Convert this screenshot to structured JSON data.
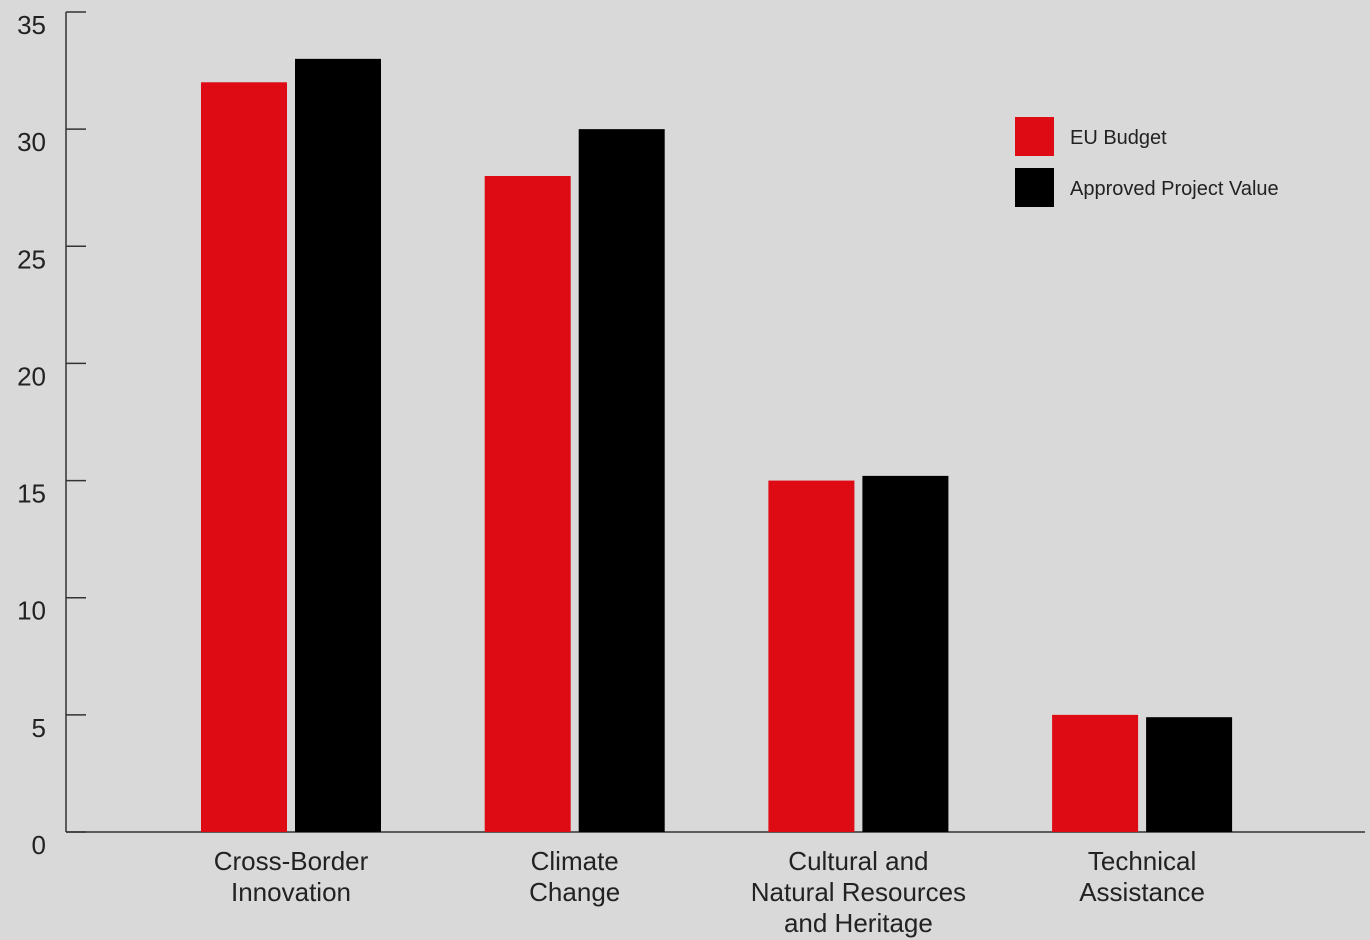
{
  "chart_data": {
    "type": "bar",
    "categories": [
      [
        "Cross-Border",
        "Innovation"
      ],
      [
        "Climate",
        "Change"
      ],
      [
        "Cultural and",
        "Natural Resources",
        "and Heritage"
      ],
      [
        "Technical",
        "Assistance"
      ]
    ],
    "series": [
      {
        "name": "EU Budget",
        "color": "#de0a14",
        "values": [
          32,
          28,
          15,
          5
        ]
      },
      {
        "name": "Approved Project Value",
        "color": "#000000",
        "values": [
          33,
          30,
          15.2,
          4.9
        ]
      }
    ],
    "yticks": [
      0,
      5,
      10,
      15,
      20,
      25,
      30,
      35
    ],
    "ylim": [
      0,
      35
    ],
    "title": "",
    "xlabel": "",
    "ylabel": "",
    "grid": false,
    "legend_position": "top-right"
  }
}
